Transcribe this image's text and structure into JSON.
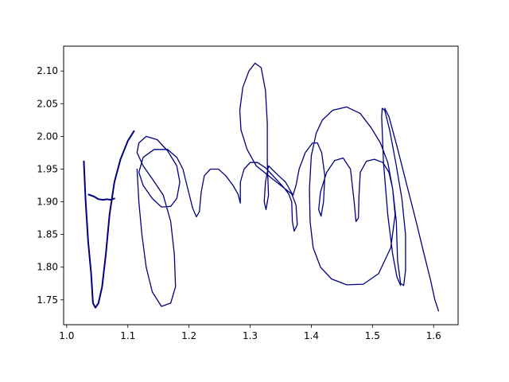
{
  "chart_data": {
    "type": "line",
    "title": "",
    "xlabel": "",
    "ylabel": "",
    "xlim": [
      0.995,
      1.64
    ],
    "ylim": [
      2.138,
      1.712
    ],
    "y_inverted": true,
    "grid": false,
    "legend": "none",
    "x_ticks": [
      1.0,
      1.1,
      1.2,
      1.3,
      1.4,
      1.5,
      1.6
    ],
    "x_tick_labels": [
      "1.0",
      "1.1",
      "1.2",
      "1.3",
      "1.4",
      "1.5",
      "1.6"
    ],
    "y_ticks": [
      1.75,
      1.8,
      1.85,
      1.9,
      1.95,
      2.0,
      2.05,
      2.1
    ],
    "y_tick_labels": [
      "1.75",
      "1.80",
      "1.85",
      "1.90",
      "1.95",
      "2.00",
      "2.05",
      "2.10"
    ],
    "series": [
      {
        "color": "#000080",
        "values": [
          [
            1.028,
            1.962
          ],
          [
            1.031,
            1.9
          ],
          [
            1.035,
            1.84
          ],
          [
            1.04,
            1.79
          ],
          [
            1.043,
            1.745
          ],
          [
            1.047,
            1.738
          ],
          [
            1.052,
            1.745
          ],
          [
            1.058,
            1.77
          ],
          [
            1.064,
            1.82
          ],
          [
            1.07,
            1.88
          ],
          [
            1.078,
            1.93
          ],
          [
            1.088,
            1.965
          ],
          [
            1.1,
            1.993
          ],
          [
            1.11,
            2.008
          ]
        ]
      },
      {
        "color": "#000080",
        "values": [
          [
            1.036,
            1.911
          ],
          [
            1.045,
            1.908
          ],
          [
            1.052,
            1.904
          ],
          [
            1.06,
            1.903
          ],
          [
            1.066,
            1.904
          ],
          [
            1.072,
            1.903
          ],
          [
            1.078,
            1.905
          ]
        ]
      },
      {
        "color": "#000080",
        "values": [
          [
            1.115,
            1.95
          ],
          [
            1.118,
            1.9
          ],
          [
            1.123,
            1.85
          ],
          [
            1.13,
            1.8
          ],
          [
            1.14,
            1.762
          ],
          [
            1.155,
            1.74
          ],
          [
            1.17,
            1.745
          ],
          [
            1.178,
            1.77
          ],
          [
            1.176,
            1.82
          ],
          [
            1.17,
            1.87
          ],
          [
            1.158,
            1.91
          ],
          [
            1.14,
            1.935
          ],
          [
            1.125,
            1.955
          ],
          [
            1.115,
            1.975
          ],
          [
            1.118,
            1.99
          ],
          [
            1.13,
            2.0
          ],
          [
            1.148,
            1.995
          ],
          [
            1.165,
            1.978
          ],
          [
            1.18,
            1.955
          ],
          [
            1.185,
            1.93
          ],
          [
            1.18,
            1.905
          ],
          [
            1.17,
            1.893
          ],
          [
            1.155,
            1.892
          ],
          [
            1.14,
            1.905
          ],
          [
            1.125,
            1.925
          ],
          [
            1.118,
            1.945
          ],
          [
            1.125,
            1.968
          ],
          [
            1.143,
            1.98
          ],
          [
            1.165,
            1.98
          ],
          [
            1.18,
            1.968
          ],
          [
            1.19,
            1.95
          ],
          [
            1.198,
            1.92
          ],
          [
            1.206,
            1.89
          ],
          [
            1.212,
            1.877
          ],
          [
            1.217,
            1.885
          ],
          [
            1.22,
            1.915
          ],
          [
            1.225,
            1.94
          ],
          [
            1.235,
            1.95
          ],
          [
            1.248,
            1.95
          ],
          [
            1.26,
            1.94
          ],
          [
            1.272,
            1.925
          ],
          [
            1.28,
            1.912
          ],
          [
            1.284,
            1.898
          ],
          [
            1.284,
            1.93
          ],
          [
            1.29,
            1.95
          ],
          [
            1.3,
            1.96
          ],
          [
            1.312,
            1.96
          ],
          [
            1.325,
            1.952
          ],
          [
            1.335,
            1.942
          ],
          [
            1.345,
            1.932
          ],
          [
            1.355,
            1.922
          ],
          [
            1.363,
            1.912
          ],
          [
            1.368,
            1.9
          ],
          [
            1.369,
            1.87
          ],
          [
            1.372,
            1.855
          ],
          [
            1.377,
            1.865
          ],
          [
            1.375,
            1.895
          ],
          [
            1.368,
            1.912
          ],
          [
            1.35,
            1.925
          ],
          [
            1.33,
            1.94
          ],
          [
            1.31,
            1.955
          ],
          [
            1.295,
            1.98
          ],
          [
            1.285,
            2.01
          ],
          [
            1.283,
            2.04
          ],
          [
            1.288,
            2.075
          ],
          [
            1.298,
            2.1
          ],
          [
            1.308,
            2.112
          ],
          [
            1.318,
            2.105
          ],
          [
            1.325,
            2.07
          ],
          [
            1.328,
            2.02
          ],
          [
            1.328,
            1.96
          ],
          [
            1.33,
            1.91
          ],
          [
            1.326,
            1.888
          ],
          [
            1.323,
            1.9
          ],
          [
            1.325,
            1.93
          ],
          [
            1.33,
            1.955
          ],
          [
            1.343,
            1.943
          ],
          [
            1.358,
            1.93
          ],
          [
            1.37,
            1.91
          ],
          [
            1.375,
            1.925
          ],
          [
            1.38,
            1.95
          ],
          [
            1.39,
            1.975
          ],
          [
            1.402,
            1.99
          ],
          [
            1.41,
            1.99
          ],
          [
            1.417,
            1.975
          ],
          [
            1.422,
            1.94
          ],
          [
            1.42,
            1.9
          ],
          [
            1.416,
            1.878
          ],
          [
            1.412,
            1.888
          ],
          [
            1.415,
            1.915
          ],
          [
            1.425,
            1.945
          ],
          [
            1.438,
            1.963
          ],
          [
            1.452,
            1.967
          ],
          [
            1.464,
            1.95
          ],
          [
            1.47,
            1.9
          ],
          [
            1.473,
            1.87
          ],
          [
            1.477,
            1.875
          ],
          [
            1.478,
            1.91
          ],
          [
            1.48,
            1.945
          ],
          [
            1.49,
            1.962
          ],
          [
            1.503,
            1.965
          ],
          [
            1.517,
            1.96
          ],
          [
            1.527,
            1.945
          ],
          [
            1.533,
            1.92
          ],
          [
            1.537,
            1.88
          ],
          [
            1.53,
            1.83
          ],
          [
            1.51,
            1.79
          ],
          [
            1.485,
            1.774
          ],
          [
            1.458,
            1.773
          ],
          [
            1.433,
            1.782
          ],
          [
            1.415,
            1.8
          ],
          [
            1.403,
            1.83
          ],
          [
            1.398,
            1.87
          ],
          [
            1.397,
            1.92
          ],
          [
            1.4,
            1.97
          ],
          [
            1.408,
            2.005
          ],
          [
            1.418,
            2.025
          ],
          [
            1.435,
            2.04
          ],
          [
            1.458,
            2.045
          ],
          [
            1.48,
            2.035
          ],
          [
            1.498,
            2.013
          ],
          [
            1.513,
            1.99
          ],
          [
            1.525,
            1.96
          ],
          [
            1.533,
            1.92
          ],
          [
            1.539,
            1.87
          ],
          [
            1.541,
            1.81
          ],
          [
            1.546,
            1.775
          ],
          [
            1.551,
            1.772
          ],
          [
            1.554,
            1.795
          ],
          [
            1.554,
            1.85
          ],
          [
            1.548,
            1.905
          ],
          [
            1.538,
            1.96
          ],
          [
            1.528,
            2.01
          ],
          [
            1.52,
            2.04
          ],
          [
            1.516,
            2.043
          ],
          [
            1.515,
            2.03
          ],
          [
            1.518,
            1.96
          ],
          [
            1.525,
            1.88
          ],
          [
            1.533,
            1.82
          ],
          [
            1.54,
            1.785
          ],
          [
            1.546,
            1.772
          ]
        ]
      },
      {
        "color": "#000080",
        "values": [
          [
            1.52,
            2.043
          ],
          [
            1.527,
            2.03
          ],
          [
            1.54,
            1.985
          ],
          [
            1.555,
            1.93
          ],
          [
            1.57,
            1.875
          ],
          [
            1.583,
            1.825
          ],
          [
            1.595,
            1.78
          ],
          [
            1.602,
            1.75
          ],
          [
            1.608,
            1.733
          ]
        ]
      }
    ]
  }
}
